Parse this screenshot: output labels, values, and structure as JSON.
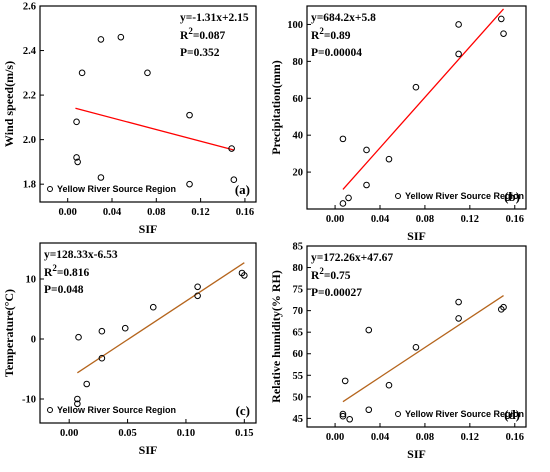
{
  "chart_data": [
    {
      "type": "scatter",
      "panel": "(a)",
      "xlabel": "SIF",
      "ylabel": "Wind speed(m/s)",
      "xlim": [
        -0.025,
        0.17
      ],
      "ylim": [
        1.72,
        2.6
      ],
      "xticks": [
        "0.00",
        "0.04",
        "0.08",
        "0.12",
        "0.16"
      ],
      "xtick_values": [
        0.0,
        0.04,
        0.08,
        0.12,
        0.16
      ],
      "yticks": [
        "1.8",
        "2.0",
        "2.2",
        "2.4",
        "2.6"
      ],
      "ytick_values": [
        1.8,
        2.0,
        2.2,
        2.4,
        2.6
      ],
      "equation": "y=-1.31x+2.15",
      "r2_prefix": "R",
      "r2_sup": "2",
      "r2_value": "=0.087",
      "p_text": "P=0.352",
      "legend": "Yellow River Source Region",
      "legend_position": "bottom-left",
      "points": [
        [
          0.008,
          1.92
        ],
        [
          0.009,
          1.9
        ],
        [
          0.008,
          2.08
        ],
        [
          0.013,
          2.3
        ],
        [
          0.03,
          2.45
        ],
        [
          0.048,
          2.46
        ],
        [
          0.072,
          2.3
        ],
        [
          0.03,
          1.83
        ],
        [
          0.11,
          2.11
        ],
        [
          0.11,
          1.8
        ],
        [
          0.148,
          1.96
        ],
        [
          0.15,
          1.82
        ]
      ],
      "fit": {
        "slope": -1.31,
        "intercept": 2.15,
        "x_range": [
          0.007,
          0.15
        ],
        "color": "#ff0000"
      }
    },
    {
      "type": "scatter",
      "panel": "(b)",
      "xlabel": "SIF",
      "ylabel": "Precipitation(mm)",
      "xlim": [
        -0.025,
        0.17
      ],
      "ylim": [
        0,
        110
      ],
      "xticks": [
        "0.00",
        "0.04",
        "0.08",
        "0.12",
        "0.16"
      ],
      "xtick_values": [
        0.0,
        0.04,
        0.08,
        0.12,
        0.16
      ],
      "yticks": [
        "20",
        "40",
        "60",
        "80",
        "100"
      ],
      "ytick_values": [
        20,
        40,
        60,
        80,
        100
      ],
      "equation": "y=684.2x+5.8",
      "r2_prefix": "R",
      "r2_sup": "2",
      "r2_value": "=0.89",
      "p_text": "P=0.00004",
      "legend": "Yellow River Source Region",
      "legend_position": "bottom-right",
      "points": [
        [
          0.007,
          3
        ],
        [
          0.007,
          38
        ],
        [
          0.012,
          6
        ],
        [
          0.028,
          13
        ],
        [
          0.028,
          32
        ],
        [
          0.048,
          27
        ],
        [
          0.072,
          66
        ],
        [
          0.11,
          84
        ],
        [
          0.11,
          100
        ],
        [
          0.148,
          103
        ],
        [
          0.15,
          95
        ]
      ],
      "fit": {
        "slope": 684.2,
        "intercept": 5.8,
        "x_range": [
          0.007,
          0.15
        ],
        "color": "#ff0000"
      }
    },
    {
      "type": "scatter",
      "panel": "(c)",
      "xlabel": "SIF",
      "ylabel": "Temperature(°C)",
      "xlim": [
        -0.025,
        0.16
      ],
      "ylim": [
        -14,
        16
      ],
      "xticks": [
        "0.00",
        "0.05",
        "0.10",
        "0.15"
      ],
      "xtick_values": [
        0.0,
        0.05,
        0.1,
        0.15
      ],
      "yticks": [
        "-10",
        "0",
        "10"
      ],
      "ytick_values": [
        -10,
        0,
        10
      ],
      "equation": "y=128.33x-6.53",
      "r2_prefix": "R",
      "r2_sup": "2",
      "r2_value": "=0.816",
      "p_text": "P=0.048",
      "legend": "Yellow River Source Region",
      "legend_position": "bottom-left",
      "points": [
        [
          0.007,
          -10.0
        ],
        [
          0.007,
          -10.8
        ],
        [
          0.008,
          0.3
        ],
        [
          0.015,
          -7.5
        ],
        [
          0.028,
          1.3
        ],
        [
          0.028,
          -3.2
        ],
        [
          0.048,
          1.8
        ],
        [
          0.072,
          5.3
        ],
        [
          0.11,
          8.7
        ],
        [
          0.11,
          7.2
        ],
        [
          0.148,
          11.0
        ],
        [
          0.15,
          10.6
        ]
      ],
      "fit": {
        "slope": 128.33,
        "intercept": -6.53,
        "x_range": [
          0.007,
          0.15
        ],
        "color": "#b5651d"
      }
    },
    {
      "type": "scatter",
      "panel": "(d)",
      "xlabel": "SIF",
      "ylabel": "Relative humidity(% RH)",
      "xlim": [
        -0.025,
        0.17
      ],
      "ylim": [
        43,
        85
      ],
      "xticks": [
        "0.00",
        "0.04",
        "0.08",
        "0.12",
        "0.16"
      ],
      "xtick_values": [
        0.0,
        0.04,
        0.08,
        0.12,
        0.16
      ],
      "yticks": [
        "45",
        "50",
        "55",
        "60",
        "65",
        "70",
        "75",
        "80",
        "85"
      ],
      "ytick_values": [
        45,
        50,
        55,
        60,
        65,
        70,
        75,
        80,
        85
      ],
      "equation": "y=172.26x+47.67",
      "r2_prefix": "R",
      "r2_sup": "2",
      "r2_value": "=0.75",
      "p_text": "P=0.00027",
      "legend": "Yellow River Source Region",
      "legend_position": "bottom-right",
      "points": [
        [
          0.007,
          46.0
        ],
        [
          0.007,
          45.5
        ],
        [
          0.009,
          53.7
        ],
        [
          0.013,
          44.8
        ],
        [
          0.03,
          47.0
        ],
        [
          0.03,
          65.5
        ],
        [
          0.048,
          52.7
        ],
        [
          0.072,
          61.5
        ],
        [
          0.11,
          72.0
        ],
        [
          0.11,
          68.2
        ],
        [
          0.148,
          70.3
        ],
        [
          0.15,
          70.8
        ]
      ],
      "fit": {
        "slope": 172.26,
        "intercept": 47.67,
        "x_range": [
          0.007,
          0.15
        ],
        "color": "#b5651d"
      }
    }
  ]
}
